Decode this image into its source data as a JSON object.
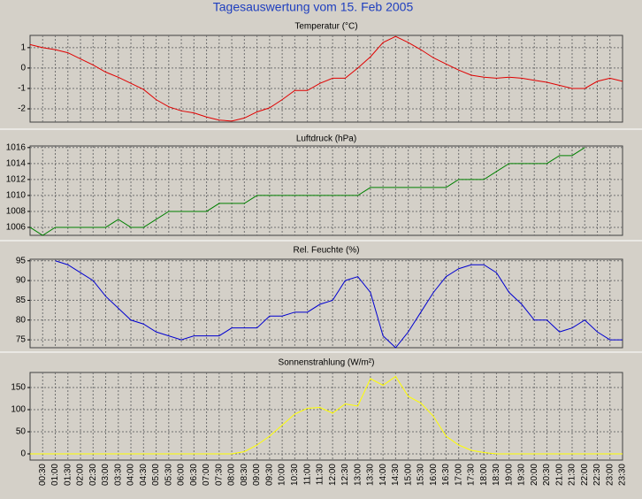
{
  "title": "Tagesauswertung vom 15. Feb 2005",
  "chart_data": [
    {
      "type": "line",
      "title": "Temperatur (°C)",
      "color": "#e00000",
      "grid": true,
      "ylim": [
        -2.65,
        1.6
      ],
      "yticks": [
        -2,
        -1,
        0,
        1
      ],
      "values": [
        1.15,
        1.0,
        0.9,
        0.75,
        0.45,
        0.15,
        -0.2,
        -0.45,
        -0.75,
        -1.05,
        -1.55,
        -1.9,
        -2.1,
        -2.2,
        -2.4,
        -2.55,
        -2.6,
        -2.45,
        -2.15,
        -1.95,
        -1.55,
        -1.1,
        -1.1,
        -0.75,
        -0.5,
        -0.5,
        0.0,
        0.55,
        1.25,
        1.55,
        1.25,
        0.9,
        0.5,
        0.2,
        -0.1,
        -0.35,
        -0.45,
        -0.5,
        -0.45,
        -0.5,
        -0.6,
        -0.7,
        -0.85,
        -1.0,
        -1.0,
        -0.65,
        -0.5,
        -0.65
      ]
    },
    {
      "type": "line",
      "title": "Luftdruck (hPa)",
      "color": "#008000",
      "grid": true,
      "ylim": [
        1005,
        1016.2
      ],
      "yticks": [
        1006,
        1008,
        1010,
        1012,
        1014,
        1016
      ],
      "values": [
        1006,
        1005,
        1006,
        1006,
        1006,
        1006,
        1006,
        1007,
        1006,
        1006,
        1007,
        1008,
        1008,
        1008,
        1008,
        1009,
        1009,
        1009,
        1010,
        1010,
        1010,
        1010,
        1010,
        1010,
        1010,
        1010,
        1010,
        1011,
        1011,
        1011,
        1011,
        1011,
        1011,
        1011,
        1012,
        1012,
        1012,
        1013,
        1014,
        1014,
        1014,
        1014,
        1015,
        1015,
        1016,
        null,
        null,
        null
      ]
    },
    {
      "type": "line",
      "title": "Rel. Feuchte (%)",
      "color": "#0000d0",
      "grid": true,
      "ylim": [
        73,
        95.4
      ],
      "yticks": [
        75,
        80,
        85,
        90,
        95
      ],
      "values": [
        null,
        null,
        95,
        94,
        92,
        90,
        86,
        83,
        80,
        79,
        77,
        76,
        75,
        76,
        76,
        76,
        78,
        78,
        78,
        81,
        81,
        82,
        82,
        84,
        85,
        90,
        91,
        87,
        76,
        73,
        77,
        82,
        87,
        91,
        93,
        94,
        94,
        92,
        87,
        84,
        80,
        80,
        77,
        78,
        80,
        77,
        75,
        75
      ]
    },
    {
      "type": "line",
      "title": "Sonnenstrahlung (W/m²)",
      "color": "#ffff00",
      "grid": true,
      "ylim": [
        -14,
        184
      ],
      "yticks": [
        0,
        50,
        100,
        150
      ],
      "values": [
        0,
        0,
        0,
        0,
        0,
        0,
        0,
        0,
        0,
        0,
        0,
        0,
        0,
        0,
        0,
        0,
        0,
        5,
        20,
        40,
        65,
        90,
        103,
        105,
        92,
        113,
        108,
        170,
        155,
        175,
        130,
        115,
        85,
        40,
        20,
        8,
        3,
        0,
        0,
        0,
        0,
        0,
        0,
        0,
        0,
        0,
        0,
        0
      ],
      "categories": [
        null,
        "00:30",
        "01:00",
        "01:30",
        "02:00",
        "02:30",
        "03:00",
        "03:30",
        "04:00",
        "04:30",
        "05:00",
        "05:30",
        "06:00",
        "06:30",
        "07:00",
        "07:30",
        "08:00",
        "08:30",
        "09:00",
        "09:30",
        "10:00",
        "10:30",
        "11:00",
        "11:30",
        "12:00",
        "12:30",
        "13:00",
        "13:30",
        "14:00",
        "14:30",
        "15:00",
        "15:30",
        "16:00",
        "16:30",
        "17:00",
        "17:30",
        "18:00",
        "18:30",
        "19:00",
        "19:30",
        "20:00",
        "20:30",
        "21:00",
        "21:30",
        "22:00",
        "22:30",
        "23:00",
        "23:30"
      ]
    }
  ]
}
